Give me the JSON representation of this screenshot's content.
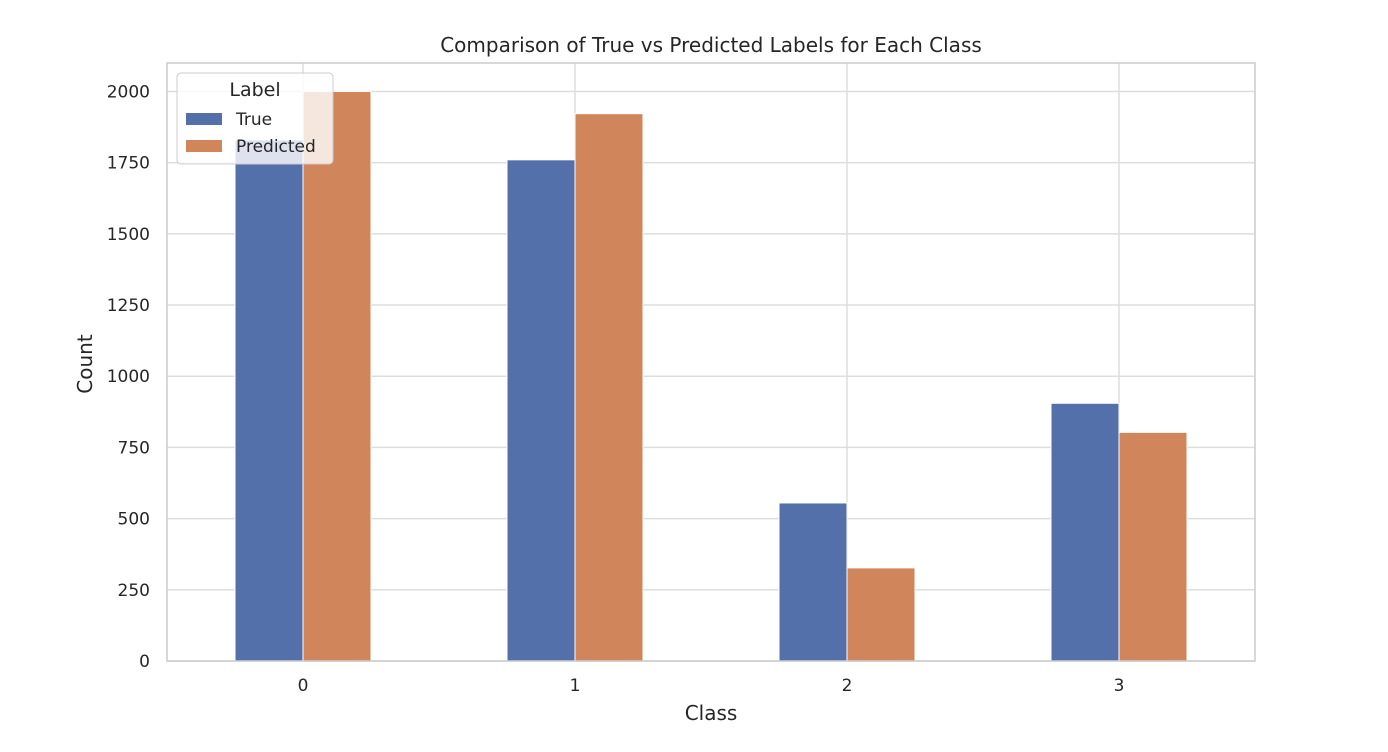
{
  "chart_data": {
    "type": "bar",
    "title": "Comparison of True vs Predicted Labels for Each Class",
    "xlabel": "Class",
    "ylabel": "Count",
    "categories": [
      "0",
      "1",
      "2",
      "3"
    ],
    "series": [
      {
        "name": "True",
        "color": "#5470AB",
        "values": [
          1830,
          1760,
          555,
          905
        ]
      },
      {
        "name": "Predicted",
        "color": "#D0855A",
        "values": [
          2000,
          1922,
          327,
          803
        ]
      }
    ],
    "ylim": [
      0,
      2100
    ],
    "yticks": [
      0,
      250,
      500,
      750,
      1000,
      1250,
      1500,
      1750,
      2000
    ],
    "grid": true,
    "legend": {
      "title": "Label",
      "position": "top-left"
    }
  }
}
